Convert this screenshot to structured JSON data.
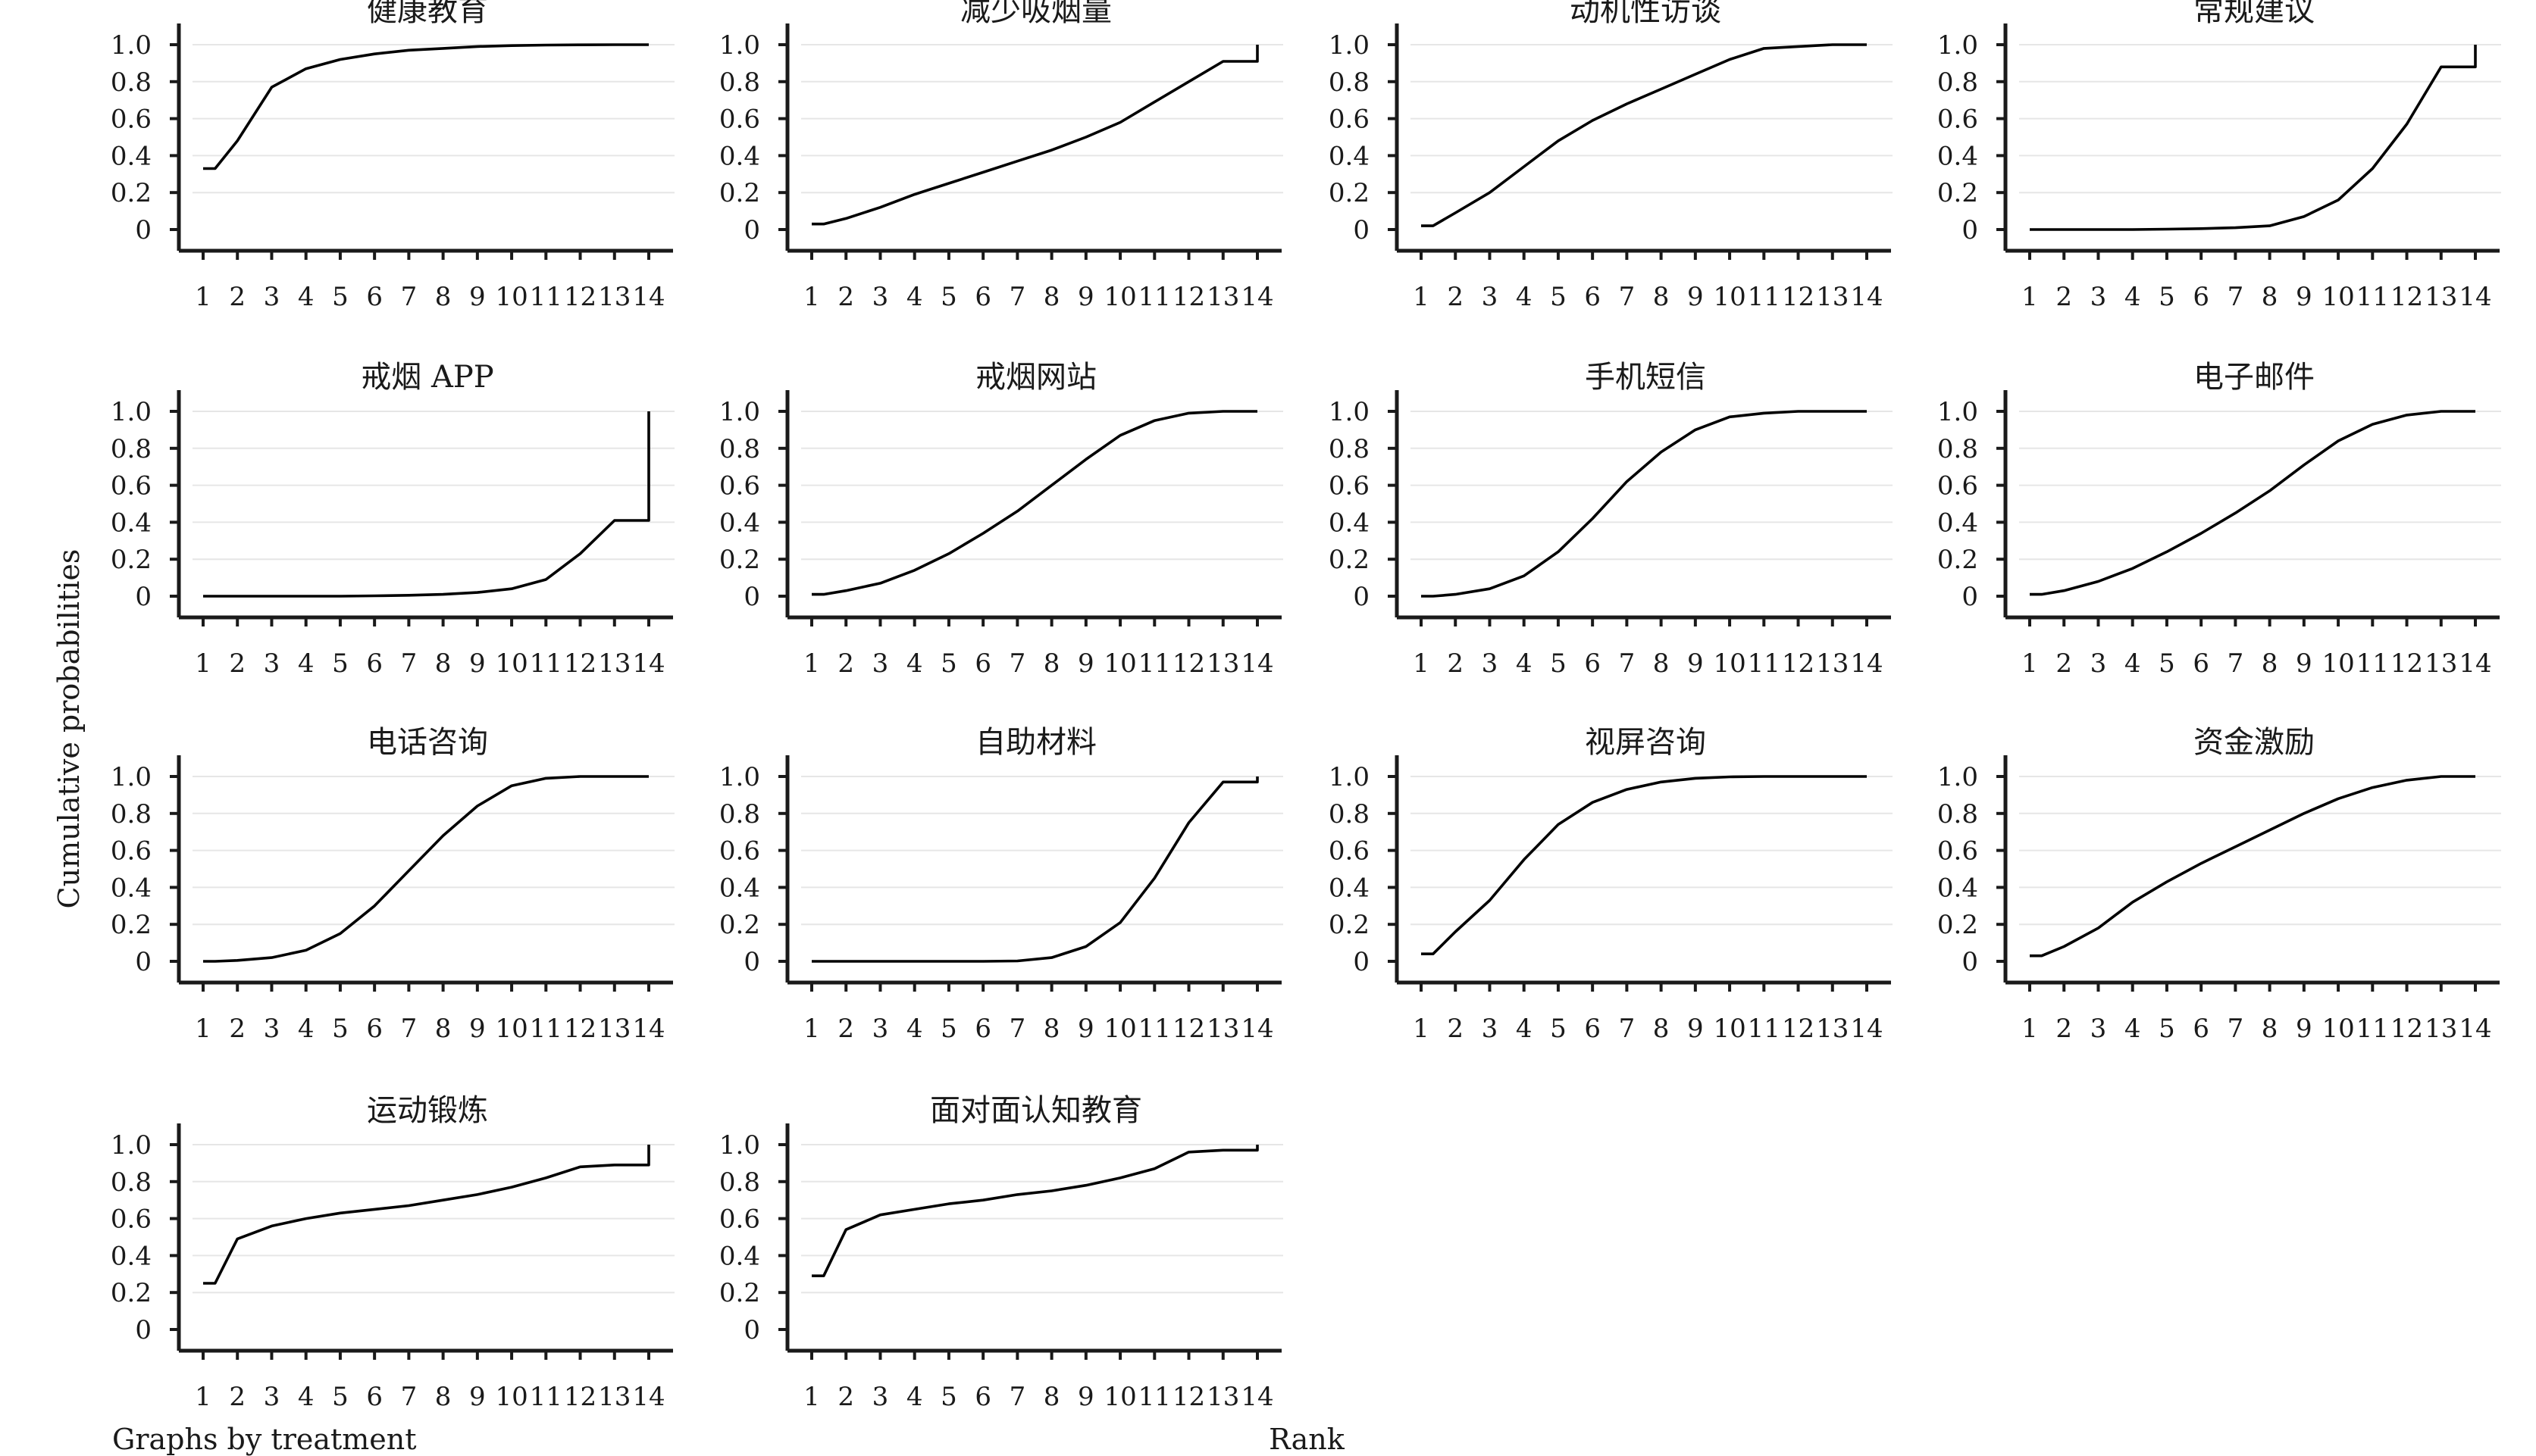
{
  "figure": {
    "ylabel": "Cumulative probabilities",
    "xlabel": "Rank",
    "note": "Graphs by treatment"
  },
  "chart_data": {
    "type": "line",
    "ylabel": "Cumulative probabilities",
    "xlabel": "Rank",
    "x": [
      1,
      2,
      3,
      4,
      5,
      6,
      7,
      8,
      9,
      10,
      11,
      12,
      13,
      14
    ],
    "xlim": [
      1,
      14
    ],
    "ylim": [
      0,
      1
    ],
    "yticks": [
      0,
      0.2,
      0.4,
      0.6,
      0.8,
      1.0
    ],
    "ytick_labels": [
      "0",
      "0.2",
      "0.4",
      "0.6",
      "0.8",
      "1.0"
    ],
    "xtick_labels": [
      "1",
      "2",
      "3",
      "4",
      "5",
      "6",
      "7",
      "8",
      "9",
      "10",
      "11",
      "12",
      "13",
      "14"
    ],
    "grid": "horizontal",
    "step_ends": true,
    "panels": [
      {
        "title": "健康教育",
        "values": [
          0.33,
          0.48,
          0.77,
          0.87,
          0.92,
          0.95,
          0.97,
          0.98,
          0.99,
          0.995,
          0.998,
          0.999,
          1.0,
          1.0
        ]
      },
      {
        "title": "减少吸烟量",
        "values": [
          0.03,
          0.06,
          0.12,
          0.19,
          0.25,
          0.31,
          0.37,
          0.43,
          0.5,
          0.58,
          0.69,
          0.8,
          0.91,
          1.0
        ]
      },
      {
        "title": "动机性访谈",
        "values": [
          0.02,
          0.09,
          0.2,
          0.34,
          0.48,
          0.59,
          0.68,
          0.76,
          0.84,
          0.92,
          0.98,
          0.99,
          1.0,
          1.0
        ]
      },
      {
        "title": "常规建议",
        "values": [
          0.0,
          0.0,
          0.0,
          0.0,
          0.002,
          0.005,
          0.01,
          0.02,
          0.07,
          0.16,
          0.33,
          0.57,
          0.88,
          1.0
        ]
      },
      {
        "title": "戒烟 APP",
        "values": [
          0.0,
          0.0,
          0.0,
          0.0,
          0.0,
          0.002,
          0.005,
          0.01,
          0.02,
          0.04,
          0.09,
          0.23,
          0.41,
          1.0
        ]
      },
      {
        "title": "戒烟网站",
        "values": [
          0.01,
          0.03,
          0.07,
          0.14,
          0.23,
          0.34,
          0.46,
          0.6,
          0.74,
          0.87,
          0.95,
          0.99,
          1.0,
          1.0
        ]
      },
      {
        "title": "手机短信",
        "values": [
          0.0,
          0.01,
          0.04,
          0.11,
          0.24,
          0.42,
          0.62,
          0.78,
          0.9,
          0.97,
          0.99,
          1.0,
          1.0,
          1.0
        ]
      },
      {
        "title": "电子邮件",
        "values": [
          0.01,
          0.03,
          0.08,
          0.15,
          0.24,
          0.34,
          0.45,
          0.57,
          0.71,
          0.84,
          0.93,
          0.98,
          1.0,
          1.0
        ]
      },
      {
        "title": "电话咨询",
        "values": [
          0.0,
          0.005,
          0.02,
          0.06,
          0.15,
          0.3,
          0.49,
          0.68,
          0.84,
          0.95,
          0.99,
          1.0,
          1.0,
          1.0
        ]
      },
      {
        "title": "自助材料",
        "values": [
          0.0,
          0.0,
          0.0,
          0.0,
          0.0,
          0.0,
          0.002,
          0.02,
          0.08,
          0.21,
          0.45,
          0.75,
          0.97,
          1.0
        ]
      },
      {
        "title": "视屏咨询",
        "values": [
          0.04,
          0.16,
          0.33,
          0.55,
          0.74,
          0.86,
          0.93,
          0.97,
          0.99,
          0.998,
          1.0,
          1.0,
          1.0,
          1.0
        ]
      },
      {
        "title": "资金激励",
        "values": [
          0.03,
          0.08,
          0.18,
          0.32,
          0.43,
          0.53,
          0.62,
          0.71,
          0.8,
          0.88,
          0.94,
          0.98,
          1.0,
          1.0
        ]
      },
      {
        "title": "运动锻炼",
        "values": [
          0.25,
          0.49,
          0.56,
          0.6,
          0.63,
          0.65,
          0.67,
          0.7,
          0.73,
          0.77,
          0.82,
          0.88,
          0.89,
          1.0
        ]
      },
      {
        "title": "面对面认知教育",
        "values": [
          0.29,
          0.54,
          0.62,
          0.65,
          0.68,
          0.7,
          0.73,
          0.75,
          0.78,
          0.82,
          0.87,
          0.96,
          0.97,
          1.0
        ]
      }
    ]
  }
}
